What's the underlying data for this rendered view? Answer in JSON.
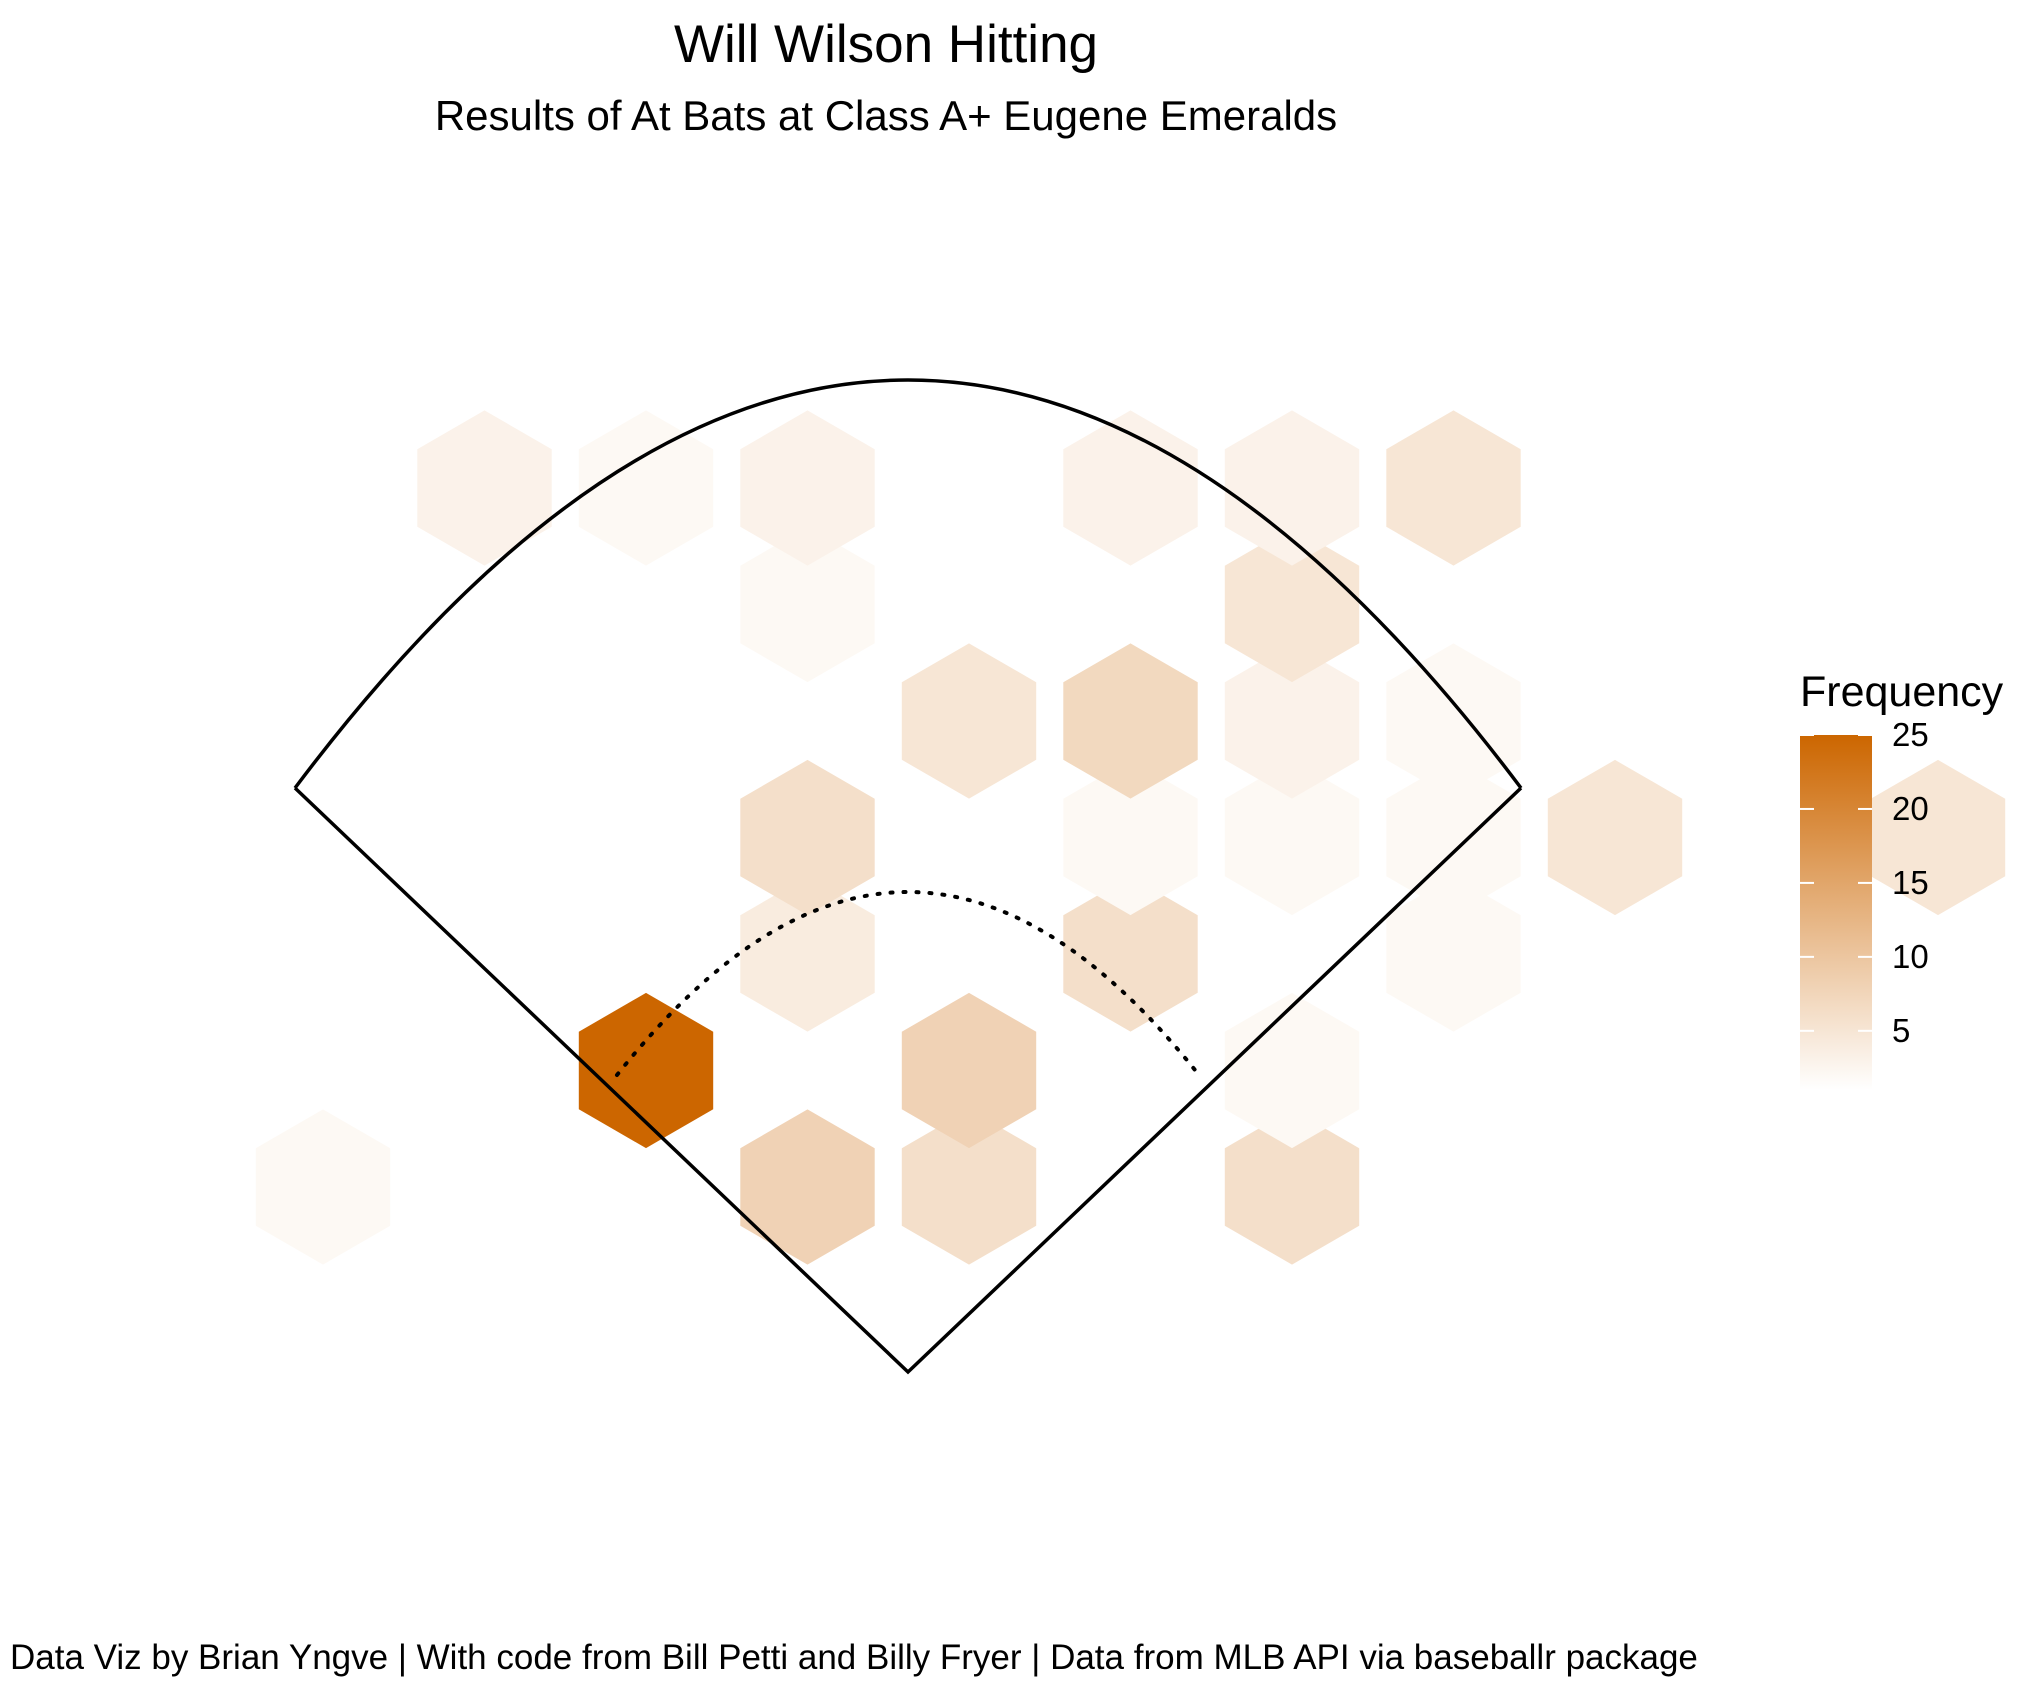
{
  "chart_data": {
    "type": "heatmap",
    "title": "Will Wilson Hitting",
    "subtitle": "Results of At Bats at Class A+ Eugene Emeralds",
    "caption": "Data Viz by Brian Yngve | With code from Bill Petti and Billy Fryer | Data from MLB API via baseballr package",
    "legend": {
      "title": "Frequency",
      "ticks": [
        5,
        10,
        15,
        20,
        25
      ],
      "range": [
        1,
        25
      ],
      "low_color": "#ffffff",
      "high_color": "#cc6600",
      "placement": "right"
    },
    "axes": "none",
    "grid": false,
    "hex_counts": [
      {
        "col": 1,
        "row": 0,
        "count": 2
      },
      {
        "col": 4,
        "row": 0,
        "count": 8
      },
      {
        "col": 5,
        "row": 0,
        "count": 6
      },
      {
        "col": 7,
        "row": 0,
        "count": 6
      },
      {
        "col": 3,
        "row": 1,
        "count": 25
      },
      {
        "col": 5,
        "row": 1,
        "count": 8
      },
      {
        "col": 7,
        "row": 1,
        "count": 2
      },
      {
        "col": 4,
        "row": 2,
        "count": 4
      },
      {
        "col": 6,
        "row": 2,
        "count": 6
      },
      {
        "col": 8,
        "row": 2,
        "count": 2
      },
      {
        "col": 4,
        "row": 3,
        "count": 6
      },
      {
        "col": 6,
        "row": 3,
        "count": 2
      },
      {
        "col": 7,
        "row": 3,
        "count": 2
      },
      {
        "col": 8,
        "row": 3,
        "count": 2
      },
      {
        "col": 9,
        "row": 3,
        "count": 5
      },
      {
        "col": 11,
        "row": 3,
        "count": 5
      },
      {
        "col": 1,
        "row": 4,
        "count": 1
      },
      {
        "col": 5,
        "row": 4,
        "count": 5
      },
      {
        "col": 6,
        "row": 4,
        "count": 7
      },
      {
        "col": 7,
        "row": 4,
        "count": 3
      },
      {
        "col": 8,
        "row": 4,
        "count": 2
      },
      {
        "col": 4,
        "row": 5,
        "count": 2
      },
      {
        "col": 7,
        "row": 5,
        "count": 5
      },
      {
        "col": 2,
        "row": 6,
        "count": 3
      },
      {
        "col": 3,
        "row": 6,
        "count": 2
      },
      {
        "col": 4,
        "row": 6,
        "count": 3
      },
      {
        "col": 5,
        "row": 6,
        "count": 1
      },
      {
        "col": 6,
        "row": 6,
        "count": 3
      },
      {
        "col": 7,
        "row": 6,
        "count": 3
      },
      {
        "col": 8,
        "row": 6,
        "count": 5
      }
    ]
  }
}
